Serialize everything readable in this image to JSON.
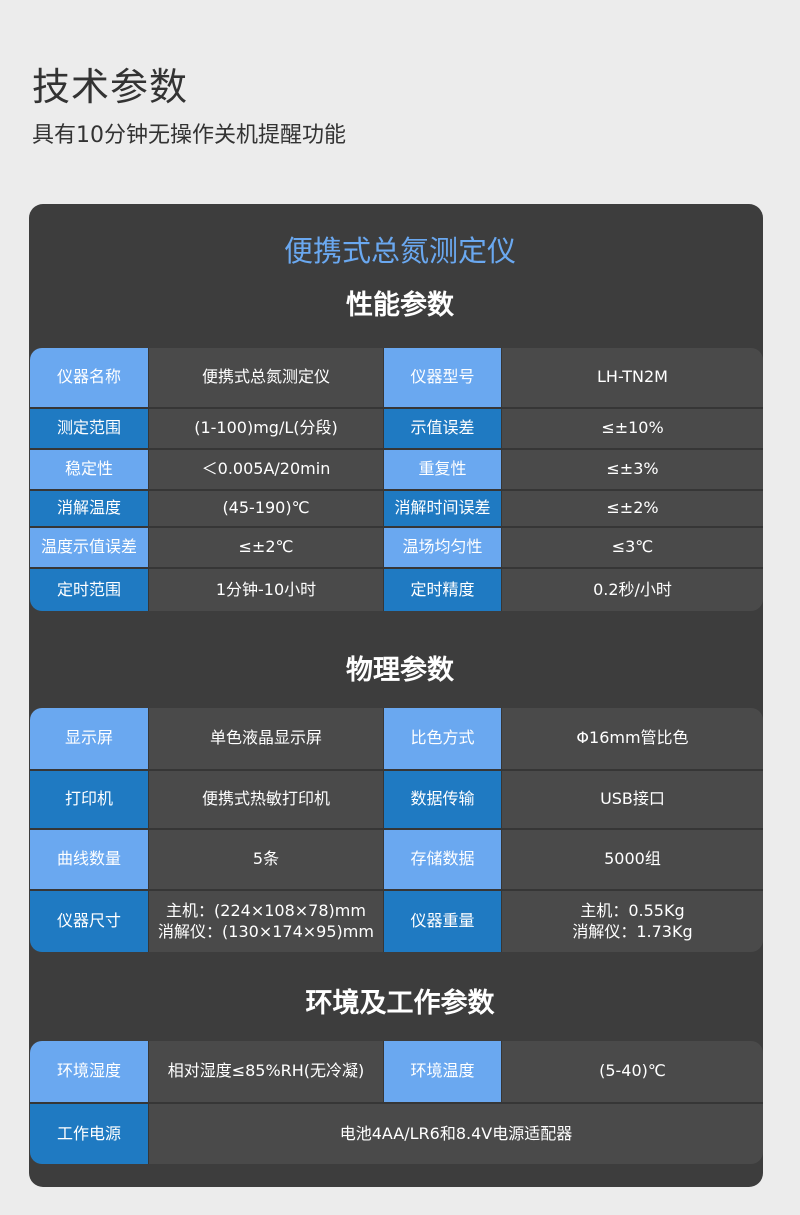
{
  "header": {
    "title": "技术参数",
    "subtitle": "具有10分钟无操作关机提醒功能"
  },
  "product_name": "便携式总氮测定仪",
  "colors": {
    "label_light": "#6aa8f0",
    "label_dark": "#1f7ac2",
    "panel": "#3d3d3d",
    "cell": "#4a4a4a"
  },
  "sections": [
    {
      "title": "性能参数",
      "rows": [
        [
          "仪器名称",
          "便携式总氮测定仪",
          "仪器型号",
          "LH-TN2M"
        ],
        [
          "测定范围",
          "(1-100)mg/L(分段)",
          "示值误差",
          "≤±10%"
        ],
        [
          "稳定性",
          "＜0.005A/20min",
          "重复性",
          "≤±3%"
        ],
        [
          "消解温度",
          "(45-190)℃",
          "消解时间误差",
          "≤±2%"
        ],
        [
          "温度示值误差",
          "≤±2℃",
          "温场均匀性",
          "≤3℃"
        ],
        [
          "定时范围",
          "1分钟-10小时",
          "定时精度",
          "0.2秒/小时"
        ]
      ]
    },
    {
      "title": "物理参数",
      "rows": [
        [
          "显示屏",
          "单色液晶显示屏",
          "比色方式",
          "Φ16mm管比色"
        ],
        [
          "打印机",
          "便携式热敏打印机",
          "数据传输",
          "USB接口"
        ],
        [
          "曲线数量",
          "5条",
          "存储数据",
          "5000组"
        ],
        [
          "仪器尺寸",
          "主机：(224×108×78)mm\n消解仪：(130×174×95)mm",
          "仪器重量",
          "主机：0.55Kg\n消解仪：1.73Kg"
        ]
      ]
    },
    {
      "title": "环境及工作参数",
      "rows": [
        [
          "环境湿度",
          "相对湿度≤85%RH(无冷凝)",
          "环境温度",
          "(5-40)℃"
        ],
        [
          "工作电源",
          "电池4AA/LR6和8.4V电源适配器"
        ]
      ]
    }
  ]
}
